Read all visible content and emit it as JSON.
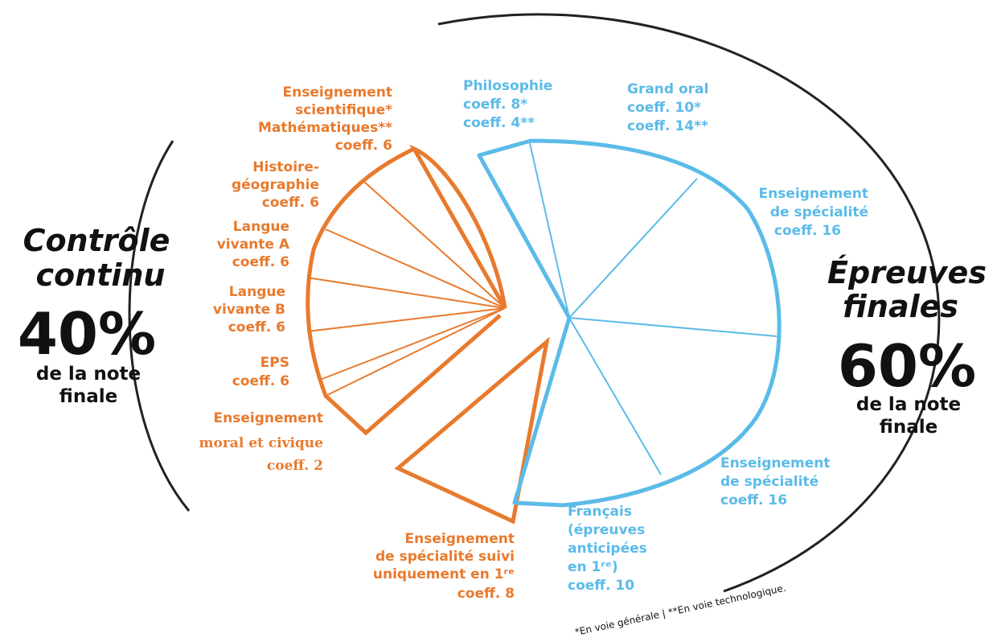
{
  "left": {
    "title_lines": [
      "Contrôle",
      "continu"
    ],
    "percent": "40%",
    "sub_lines": [
      "de la note",
      "finale"
    ]
  },
  "right": {
    "title_lines": [
      "Épreuves",
      "finales"
    ],
    "percent": "60%",
    "sub_lines": [
      "de la note",
      "finale"
    ]
  },
  "footnote": "*En voie générale | **En voie technologique.",
  "colors": {
    "orange": "#e87a2d",
    "blue": "#5bbbe8",
    "arc": "#222222"
  },
  "labels": {
    "sci": [
      "Enseignement",
      "scientifique*",
      "Mathématiques**",
      "coeff. 6"
    ],
    "hist": [
      "Histoire-",
      "géographie",
      "coeff. 6"
    ],
    "lva": [
      "Langue",
      "vivante A",
      "coeff. 6"
    ],
    "lvb": [
      "Langue",
      "vivante B",
      "coeff. 6"
    ],
    "eps": [
      "EPS",
      "coeff. 6"
    ],
    "emc": [
      "Enseignement",
      "moral et civique",
      "coeff. 2"
    ],
    "spe1": [
      "Enseignement",
      "de spécialité suivi",
      "uniquement en 1ʳᵉ",
      "coeff. 8"
    ],
    "philo": [
      "Philosophie",
      "coeff. 8*",
      "coeff. 4**"
    ],
    "oral": [
      "Grand oral",
      "coeff. 10*",
      "coeff. 14**"
    ],
    "spe_a": [
      "Enseignement",
      "de spécialité",
      "coeff. 16"
    ],
    "spe_b": [
      "Enseignement",
      "de spécialité",
      "coeff. 16"
    ],
    "fr": [
      "Français",
      "(épreuves",
      "anticipées",
      "en 1ʳᵉ)",
      "coeff. 10"
    ]
  },
  "chart_data": {
    "type": "pie",
    "groups": [
      {
        "name": "Contrôle continu",
        "share_percent": 40,
        "slices": [
          {
            "label": "Enseignement scientifique* / Mathématiques**",
            "coeff": 6
          },
          {
            "label": "Histoire-géographie",
            "coeff": 6
          },
          {
            "label": "Langue vivante A",
            "coeff": 6
          },
          {
            "label": "Langue vivante B",
            "coeff": 6
          },
          {
            "label": "EPS",
            "coeff": 6
          },
          {
            "label": "Enseignement moral et civique",
            "coeff": 2
          },
          {
            "label": "Enseignement de spécialité suivi uniquement en 1re",
            "coeff": 8
          }
        ]
      },
      {
        "name": "Épreuves finales",
        "share_percent": 60,
        "slices": [
          {
            "label": "Philosophie",
            "coeff": "8* / 4**"
          },
          {
            "label": "Grand oral",
            "coeff": "10* / 14**"
          },
          {
            "label": "Enseignement de spécialité",
            "coeff": 16
          },
          {
            "label": "Enseignement de spécialité",
            "coeff": 16
          },
          {
            "label": "Français (épreuves anticipées en 1re)",
            "coeff": 10
          }
        ]
      }
    ]
  }
}
